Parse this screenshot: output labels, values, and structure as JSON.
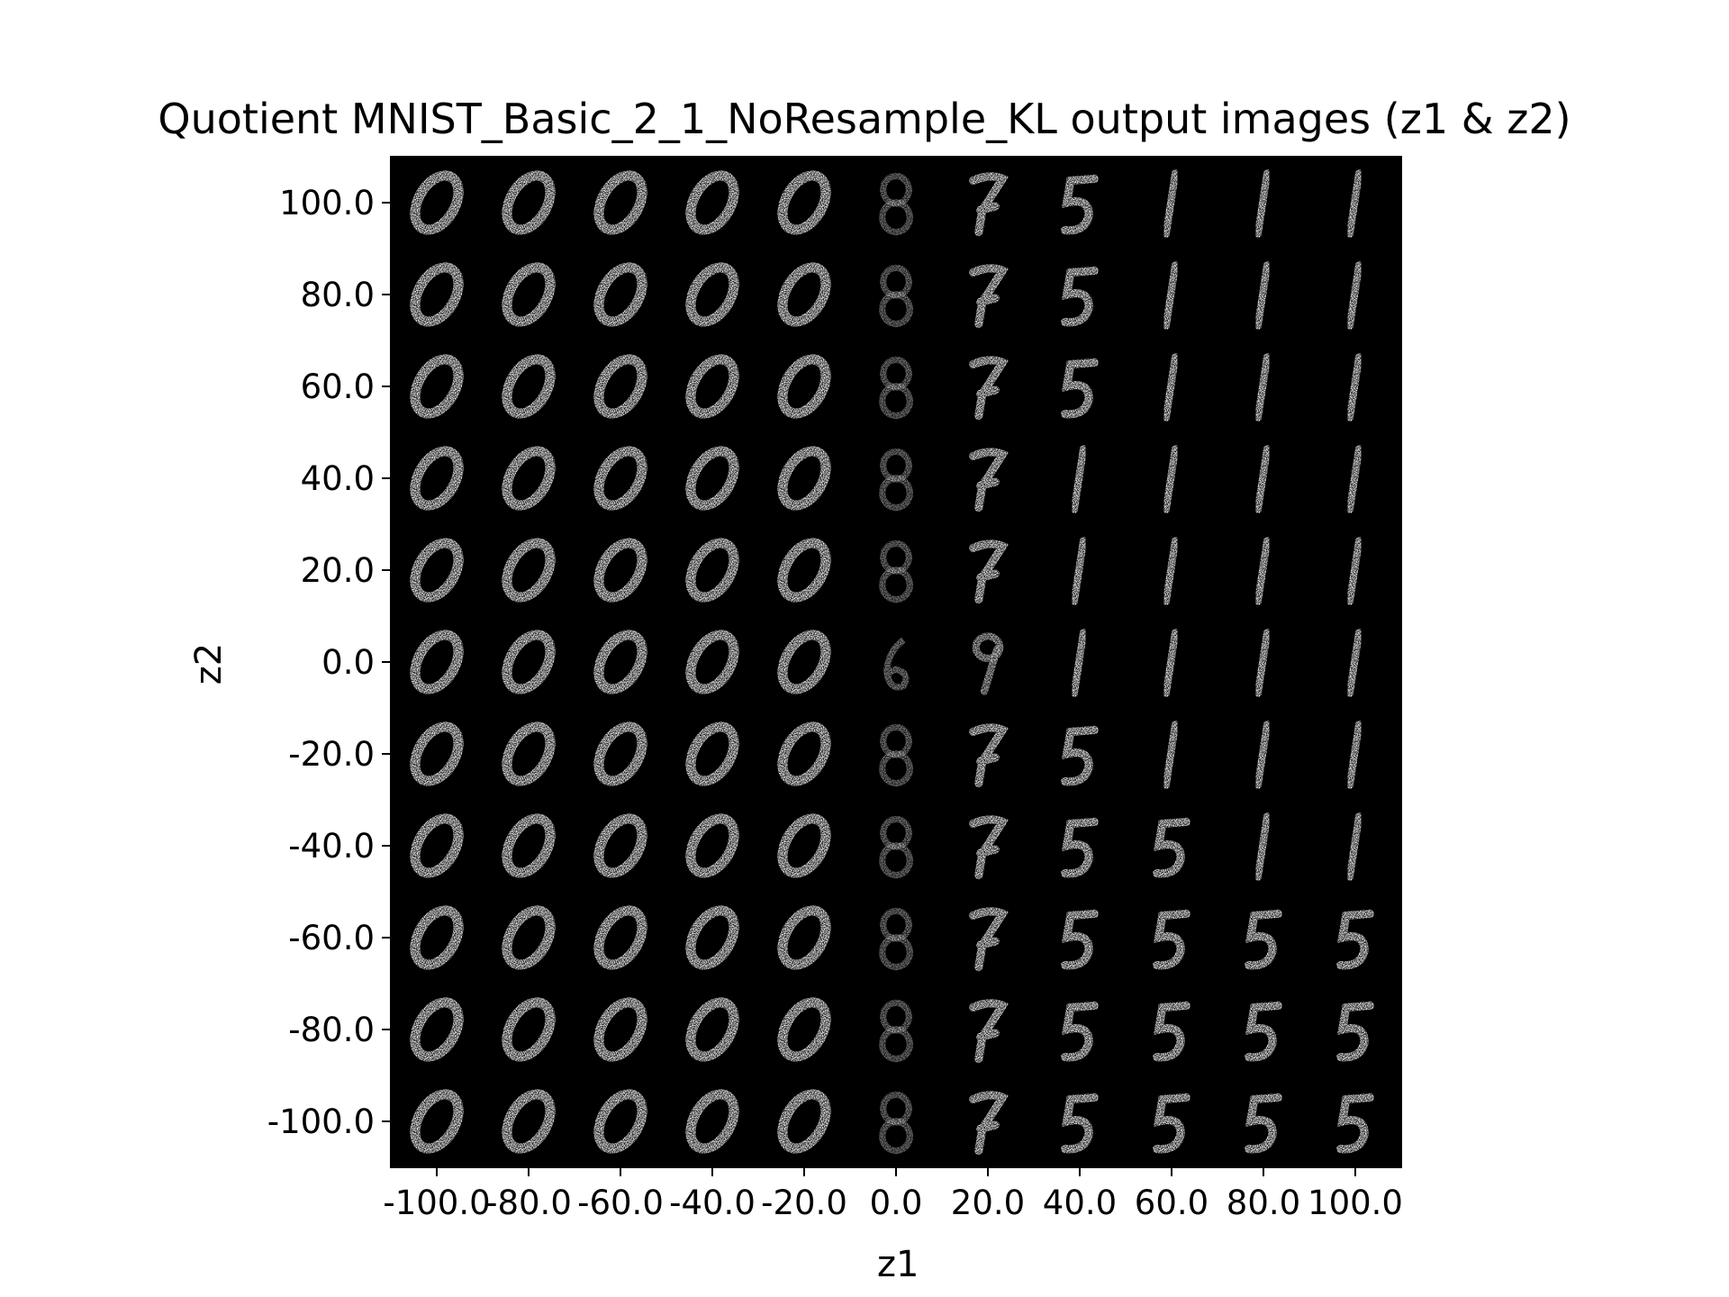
{
  "chart_data": {
    "type": "heatmap",
    "title": "Quotient MNIST_Basic_2_1_NoResample_KL output images (z1 & z2)",
    "xlabel": "z1",
    "ylabel": "z2",
    "xlim": [
      -110,
      110
    ],
    "ylim": [
      -110,
      110
    ],
    "x_ticks": [
      "-100.0",
      "-80.0",
      "-60.0",
      "-40.0",
      "-20.0",
      "0.0",
      "20.0",
      "40.0",
      "60.0",
      "80.0",
      "100.0"
    ],
    "y_ticks": [
      "100.0",
      "80.0",
      "60.0",
      "40.0",
      "20.0",
      "0.0",
      "-20.0",
      "-40.0",
      "-60.0",
      "-80.0",
      "-100.0"
    ],
    "x_values": [
      -100,
      -80,
      -60,
      -40,
      -20,
      0,
      20,
      40,
      60,
      80,
      100
    ],
    "y_values": [
      100,
      80,
      60,
      40,
      20,
      0,
      -20,
      -40,
      -60,
      -80,
      -100
    ],
    "background_color": "#000000",
    "foreground_color": "#ffffff",
    "cell_digits": [
      [
        "0",
        "0",
        "0",
        "0",
        "0",
        "8",
        "7",
        "5",
        "1",
        "1",
        "1"
      ],
      [
        "0",
        "0",
        "0",
        "0",
        "0",
        "8",
        "7",
        "5",
        "1",
        "1",
        "1"
      ],
      [
        "0",
        "0",
        "0",
        "0",
        "0",
        "8",
        "7",
        "5",
        "1",
        "1",
        "1"
      ],
      [
        "0",
        "0",
        "0",
        "0",
        "0",
        "8",
        "7",
        "1",
        "1",
        "1",
        "1"
      ],
      [
        "0",
        "0",
        "0",
        "0",
        "0",
        "8",
        "7",
        "1",
        "1",
        "1",
        "1"
      ],
      [
        "0",
        "0",
        "0",
        "0",
        "0",
        "6",
        "9",
        "1",
        "1",
        "1",
        "1"
      ],
      [
        "0",
        "0",
        "0",
        "0",
        "0",
        "8",
        "7",
        "5",
        "1",
        "1",
        "1"
      ],
      [
        "0",
        "0",
        "0",
        "0",
        "0",
        "8",
        "7",
        "5",
        "5",
        "1",
        "1"
      ],
      [
        "0",
        "0",
        "0",
        "0",
        "0",
        "8",
        "7",
        "5",
        "5",
        "5",
        "5"
      ],
      [
        "0",
        "0",
        "0",
        "0",
        "0",
        "8",
        "7",
        "5",
        "5",
        "5",
        "5"
      ],
      [
        "0",
        "0",
        "0",
        "0",
        "0",
        "8",
        "7",
        "5",
        "5",
        "5",
        "5"
      ]
    ]
  }
}
